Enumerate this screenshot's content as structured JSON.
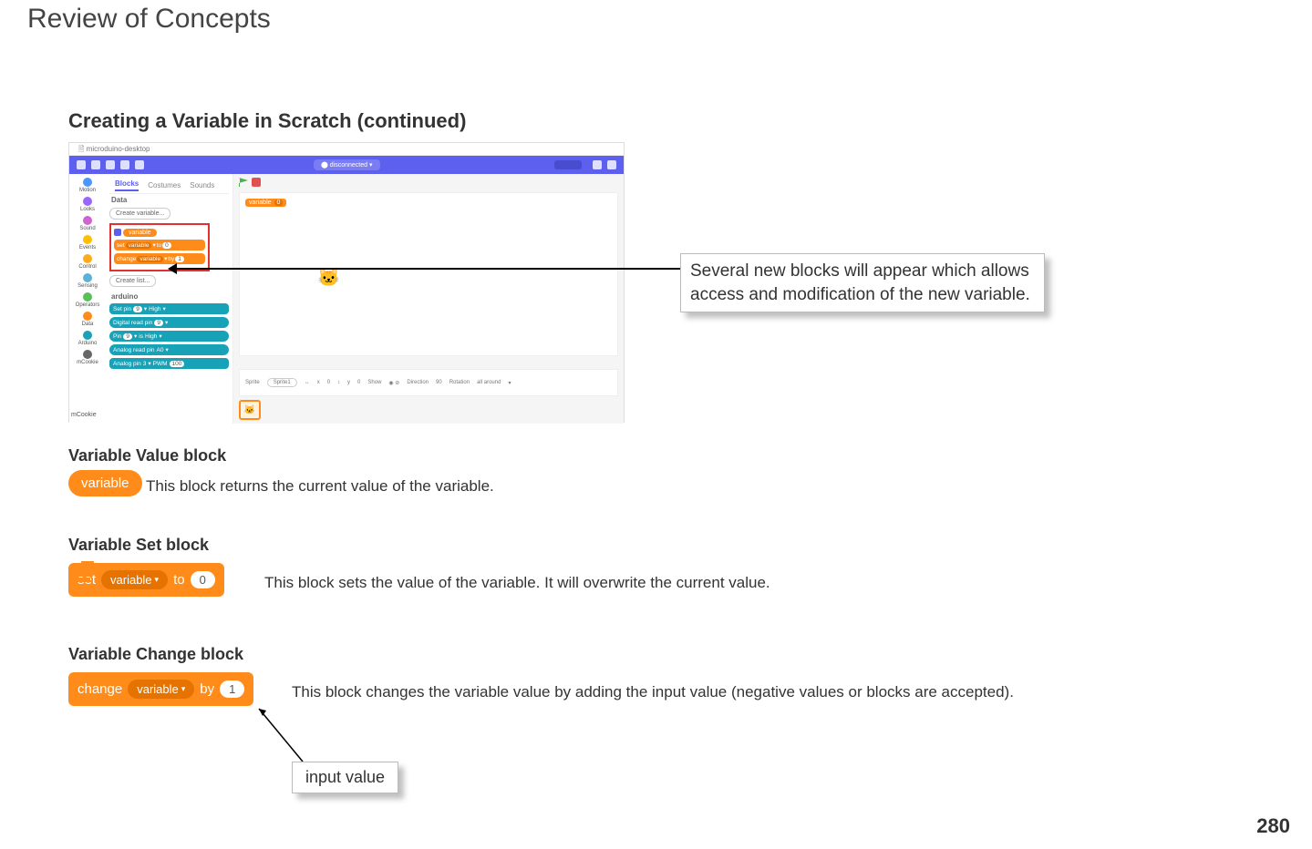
{
  "page": {
    "title": "Review of Concepts",
    "subtitle": "Creating a Variable in Scratch (continued)",
    "page_number": "280"
  },
  "screenshot": {
    "window_title": "microduino-desktop",
    "disconnected_label": "disconnected",
    "tabs": {
      "blocks": "Blocks",
      "costumes": "Costumes",
      "sounds": "Sounds"
    },
    "categories": [
      {
        "label": "Motion",
        "color": "#4c97ff"
      },
      {
        "label": "Looks",
        "color": "#9966ff"
      },
      {
        "label": "Sound",
        "color": "#cf63cf"
      },
      {
        "label": "Events",
        "color": "#ffbf00"
      },
      {
        "label": "Control",
        "color": "#ffab19"
      },
      {
        "label": "Sensing",
        "color": "#5cb1d6"
      },
      {
        "label": "Operators",
        "color": "#59c059"
      },
      {
        "label": "Data",
        "color": "#ff8c1a"
      },
      {
        "label": "Arduino",
        "color": "#17a2b8"
      },
      {
        "label": "mCookie",
        "color": "#666666"
      }
    ],
    "data_label": "Data",
    "create_variable": "Create variable...",
    "variable_chip": "variable",
    "set_block": {
      "pre": "set",
      "var": "variable",
      "mid": "to",
      "val": "0"
    },
    "change_block": {
      "pre": "change",
      "var": "variable",
      "mid": "by",
      "val": "1"
    },
    "create_list": "Create list...",
    "arduino_label": "arduino",
    "teal1": {
      "a": "Set pin",
      "b": "9",
      "c": "High"
    },
    "teal2": {
      "a": "Digital read pin",
      "b": "9"
    },
    "teal3": {
      "a": "Pin",
      "b": "9",
      "c": "is",
      "d": "High"
    },
    "teal4": {
      "a": "Analog read pin",
      "b": "A0"
    },
    "teal5": {
      "a": "Analog pin",
      "b": "3",
      "c": "PWM",
      "d": "100"
    },
    "stage_var_chip": {
      "label": "variable",
      "value": "0"
    },
    "sprite_info": {
      "sprite_lbl": "Sprite",
      "sprite_name": "Sprite1",
      "x": "x",
      "xv": "0",
      "y": "y",
      "yv": "0",
      "show": "Show",
      "dir": "Direction",
      "dirv": "90",
      "rot": "Rotation",
      "rotv": "all around"
    }
  },
  "callout1": "Several new blocks will appear which allows access and modification of the new variable.",
  "sections": {
    "var_value": {
      "heading": "Variable Value block",
      "pill": "variable",
      "desc": "This block returns the current value of the variable."
    },
    "var_set": {
      "heading": "Variable Set block",
      "pre": "set",
      "dd": "variable",
      "mid": "to",
      "val": "0",
      "desc": "This block sets the value of the variable. It will overwrite the current value."
    },
    "var_change": {
      "heading": "Variable Change block",
      "pre": "change",
      "dd": "variable",
      "mid": "by",
      "val": "1",
      "desc": "This block changes the variable value by adding the input value (negative values or blocks are accepted)."
    }
  },
  "input_callout": "input value",
  "colors": {
    "orange": "#ff8c1a",
    "orange_dark": "#e67300",
    "purple": "#5d5fef",
    "teal": "#17a2b8",
    "highlight": "#e03030"
  }
}
